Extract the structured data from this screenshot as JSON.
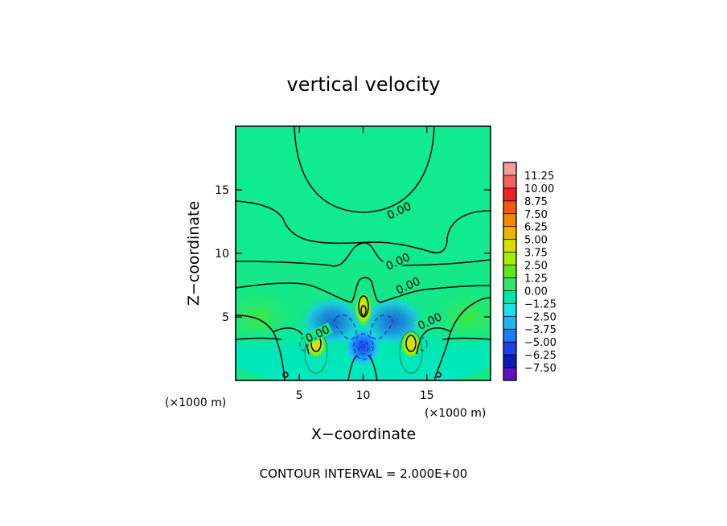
{
  "chart_data": {
    "type": "heatmap",
    "title": "vertical velocity",
    "xlabel": "X−coordinate",
    "ylabel": "Z−coordinate",
    "x_unit_left": "(×1000 m)",
    "x_unit_right": "(×1000 m)",
    "xlim": [
      0,
      20
    ],
    "ylim": [
      0,
      20
    ],
    "x_ticks": [
      5,
      10,
      15
    ],
    "y_ticks": [
      5,
      10,
      15
    ],
    "contour_interval_text": "CONTOUR INTERVAL = 2.000E+00",
    "contour_labels": [
      {
        "text": "0.00",
        "x": 12.9,
        "z": 13.2
      },
      {
        "text": "0.00",
        "x": 12.8,
        "z": 9.2
      },
      {
        "text": "0.00",
        "x": 13.6,
        "z": 7.3
      },
      {
        "text": "0.00",
        "x": 15.3,
        "z": 4.5
      },
      {
        "text": "0.00",
        "x": 6.5,
        "z": 3.5
      }
    ],
    "colorbar": {
      "levels": [
        "11.25",
        "10.00",
        "8.75",
        "7.50",
        "6.25",
        "5.00",
        "3.75",
        "2.50",
        "1.25",
        "0.00",
        "−1.25",
        "−2.50",
        "−3.75",
        "−5.00",
        "−6.25",
        "−7.50"
      ],
      "colors": [
        "#f59a9a",
        "#f5605a",
        "#ee2222",
        "#f05a14",
        "#f58a00",
        "#e8b400",
        "#d6e000",
        "#a4ee00",
        "#5ee61e",
        "#2ee86a",
        "#00e8a4",
        "#1ee0e6",
        "#1eb6f0",
        "#1e7cf2",
        "#1e40e6",
        "#0a1eb4",
        "#5a14c0"
      ]
    },
    "features": [
      {
        "kind": "updraft",
        "x": 10.0,
        "z": 5.6,
        "peak": 6.5
      },
      {
        "kind": "updraft",
        "x": 6.3,
        "z": 2.8,
        "peak": 5.5
      },
      {
        "kind": "updraft",
        "x": 13.7,
        "z": 2.8,
        "peak": 5.5
      },
      {
        "kind": "downdraft",
        "x": 10.0,
        "z": 2.6,
        "peak": -5.5
      },
      {
        "kind": "downdraft",
        "x": 8.8,
        "z": 4.5,
        "peak": -2.5
      },
      {
        "kind": "downdraft",
        "x": 11.2,
        "z": 4.5,
        "peak": -2.5
      }
    ]
  }
}
